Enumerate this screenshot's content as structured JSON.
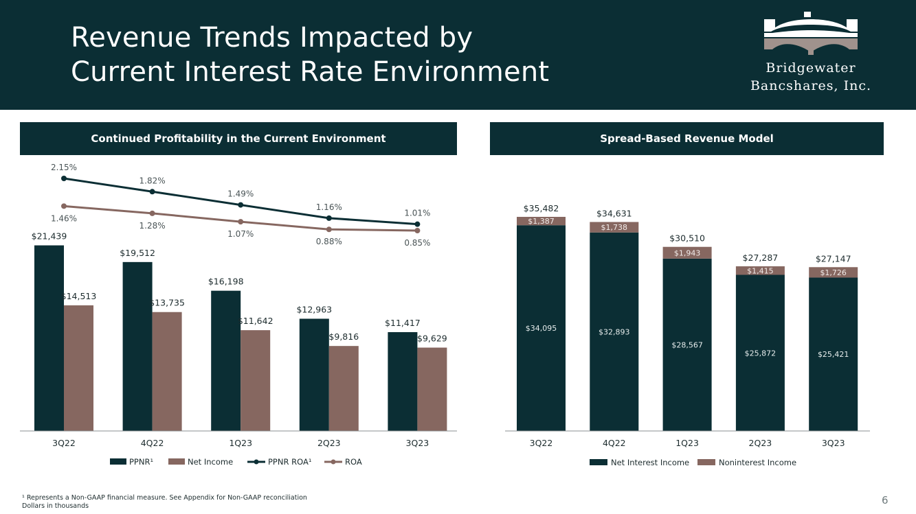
{
  "slide": {
    "title_line1": "Revenue Trends Impacted by",
    "title_line2": "Current Interest Rate Environment",
    "logo_line1": "Bridgewater",
    "logo_line2": "Bancshares, Inc.",
    "footnote_line1": "¹ Represents a Non-GAAP financial measure. See Appendix for Non-GAAP reconciliation",
    "footnote_line2": "Dollars in thousands",
    "page_number": "6"
  },
  "colors": {
    "dark": "#0b2e34",
    "brown": "#866760",
    "logo_gray": "#a0928d"
  },
  "chart_data": [
    {
      "type": "bar",
      "title": "Continued Profitability in the Current Environment",
      "categories": [
        "3Q22",
        "4Q22",
        "1Q23",
        "2Q23",
        "3Q23"
      ],
      "series": [
        {
          "name": "PPNR¹",
          "values": [
            21439,
            19512,
            16198,
            12963,
            11417
          ],
          "labels": [
            "$21,439",
            "$19,512",
            "$16,198",
            "$12,963",
            "$11,417"
          ],
          "color": "#0b2e34"
        },
        {
          "name": "Net Income",
          "values": [
            14513,
            13735,
            11642,
            9816,
            9629
          ],
          "labels": [
            "$14,513",
            "$13,735",
            "$11,642",
            "$9,816",
            "$9,629"
          ],
          "color": "#866760"
        }
      ],
      "lines": [
        {
          "name": "PPNR ROA¹",
          "values": [
            2.15,
            1.82,
            1.49,
            1.16,
            1.01
          ],
          "labels": [
            "2.15%",
            "1.82%",
            "1.49%",
            "1.16%",
            "1.01%"
          ],
          "color": "#0b2e34"
        },
        {
          "name": "ROA",
          "values": [
            1.46,
            1.28,
            1.07,
            0.88,
            0.85
          ],
          "labels": [
            "1.46%",
            "1.28%",
            "1.07%",
            "0.88%",
            "0.85%"
          ],
          "color": "#866760"
        }
      ],
      "ylim": [
        0,
        26000
      ],
      "legend": [
        "PPNR¹",
        "Net Income",
        "PPNR ROA¹",
        "ROA"
      ]
    },
    {
      "type": "bar",
      "stacked": true,
      "title": "Spread-Based Revenue Model",
      "categories": [
        "3Q22",
        "4Q22",
        "1Q23",
        "2Q23",
        "3Q23"
      ],
      "series": [
        {
          "name": "Net Interest Income",
          "values": [
            34095,
            32893,
            28567,
            25872,
            25421
          ],
          "labels": [
            "$34,095",
            "$32,893",
            "$28,567",
            "$25,872",
            "$25,421"
          ],
          "color": "#0b2e34"
        },
        {
          "name": "Noninterest Income",
          "values": [
            1387,
            1738,
            1943,
            1415,
            1726
          ],
          "labels": [
            "$1,387",
            "$1,738",
            "$1,943",
            "$1,415",
            "$1,726"
          ],
          "color": "#866760"
        }
      ],
      "totals": [
        35482,
        34631,
        30510,
        27287,
        27147
      ],
      "total_labels": [
        "$35,482",
        "$34,631",
        "$30,510",
        "$27,287",
        "$27,147"
      ],
      "ylim": [
        0,
        45000
      ],
      "legend": [
        "Net Interest Income",
        "Noninterest Income"
      ]
    }
  ]
}
